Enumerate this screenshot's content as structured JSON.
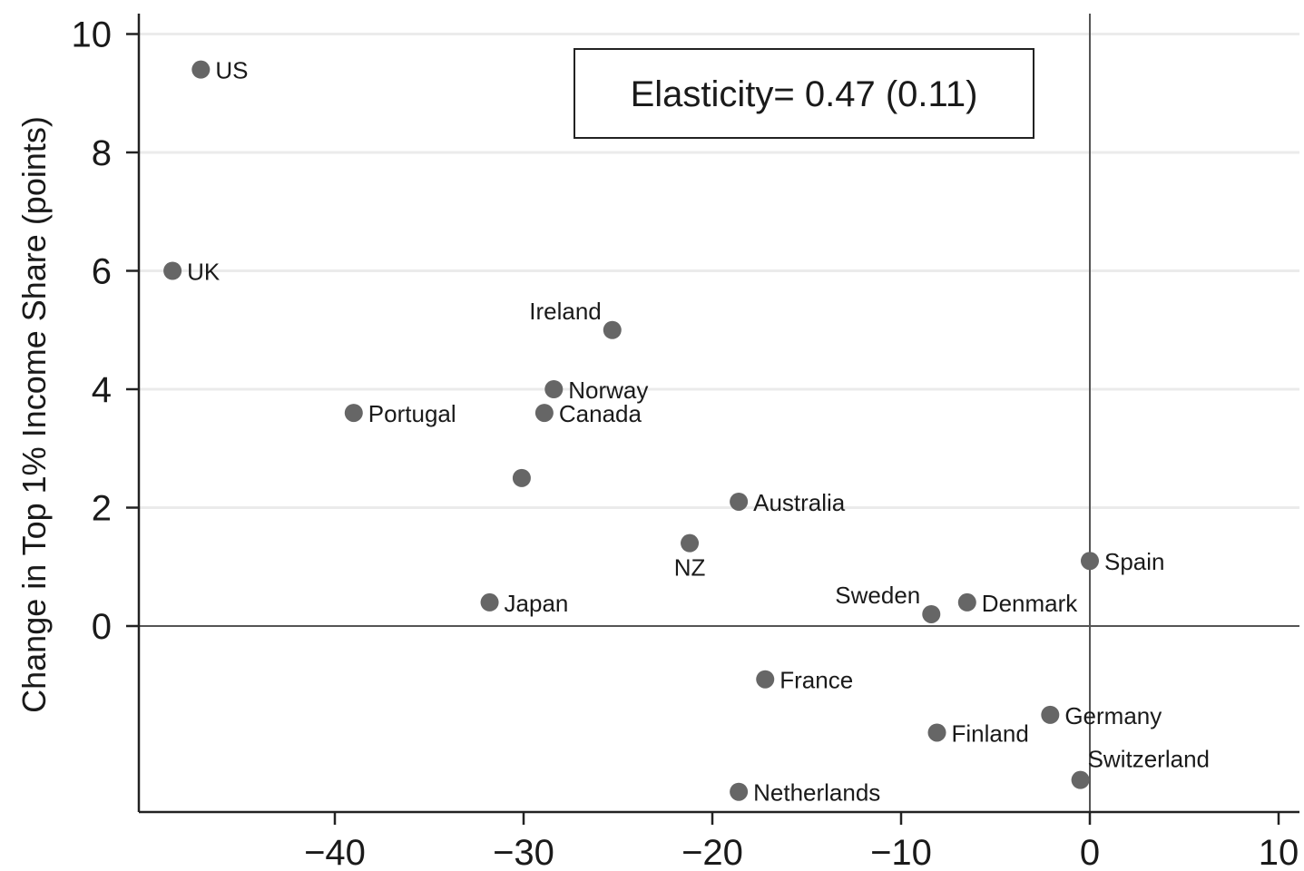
{
  "chart_data": {
    "type": "scatter",
    "title": "",
    "xlabel": "",
    "ylabel": "Change in Top 1% Income Share (points)",
    "xlim": [
      -50,
      11
    ],
    "ylim": [
      -3.2,
      10.4
    ],
    "xticks": [
      -40,
      -30,
      -20,
      -10,
      0,
      10
    ],
    "xtick_labels": [
      "−40",
      "−30",
      "−20",
      "−10",
      "0",
      "10"
    ],
    "yticks": [
      0,
      2,
      4,
      6,
      8,
      10
    ],
    "ytick_labels": [
      "0",
      "2",
      "4",
      "6",
      "8",
      "10"
    ],
    "grid": "horizontal",
    "reference_lines": {
      "x": 0,
      "y": 0
    },
    "annotation": "Elasticity= 0.47 (0.11)",
    "point_color": "#666666",
    "points": [
      {
        "label": "US",
        "x": -47.1,
        "y": 9.4
      },
      {
        "label": "UK",
        "x": -48.6,
        "y": 6.0
      },
      {
        "label": "Ireland",
        "x": -25.3,
        "y": 5.0
      },
      {
        "label": "Norway",
        "x": -28.4,
        "y": 4.0
      },
      {
        "label": "Canada",
        "x": -28.9,
        "y": 3.6
      },
      {
        "label": "Portugal",
        "x": -39.0,
        "y": 3.6
      },
      {
        "label": "",
        "x": -30.1,
        "y": 2.5
      },
      {
        "label": "Australia",
        "x": -18.6,
        "y": 2.1
      },
      {
        "label": "NZ",
        "x": -21.2,
        "y": 1.4
      },
      {
        "label": "Spain",
        "x": 0.0,
        "y": 1.1
      },
      {
        "label": "Japan",
        "x": -31.8,
        "y": 0.4
      },
      {
        "label": "Sweden",
        "x": -8.4,
        "y": 0.2
      },
      {
        "label": "Denmark",
        "x": -6.5,
        "y": 0.4
      },
      {
        "label": "France",
        "x": -17.2,
        "y": -0.9
      },
      {
        "label": "Germany",
        "x": -2.1,
        "y": -1.5
      },
      {
        "label": "Finland",
        "x": -8.1,
        "y": -1.8
      },
      {
        "label": "Switzerland",
        "x": -0.5,
        "y": -2.6
      },
      {
        "label": "Netherlands",
        "x": -18.6,
        "y": -2.8
      }
    ]
  }
}
